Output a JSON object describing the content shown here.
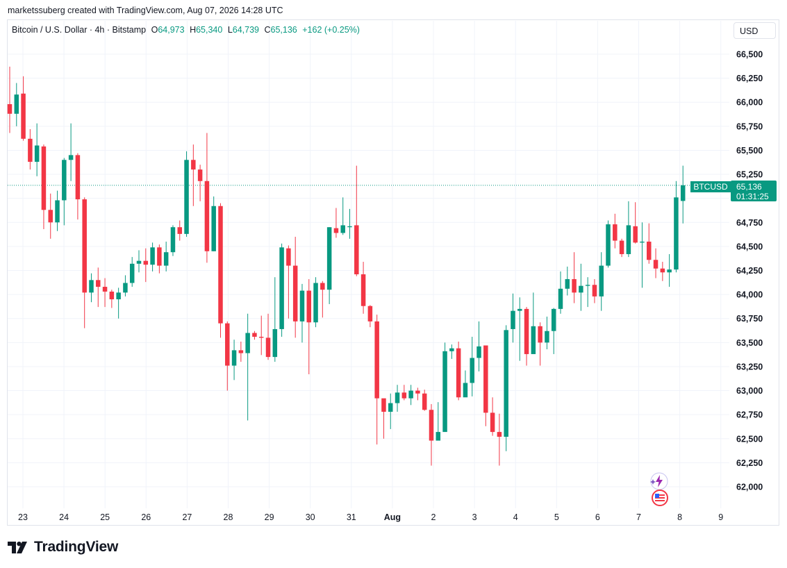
{
  "header": {
    "credit": "marketssuberg created with TradingView.com, Aug 07, 2026 14:28 UTC"
  },
  "legend": {
    "symbol": "Bitcoin / U.S. Dollar · 4h · Bitstamp",
    "open_label": "O",
    "open": "64,973",
    "high_label": "H",
    "high": "65,340",
    "low_label": "L",
    "low": "64,739",
    "close_label": "C",
    "close": "65,136",
    "change": "+162 (+0.25%)"
  },
  "toolbar": {
    "currency": "USD"
  },
  "price_tag": {
    "symbol": "BTCUSD",
    "price": "65,136",
    "countdown": "01:31:25"
  },
  "branding": {
    "logo_text": "TradingView"
  },
  "icons": [
    "flash-icon",
    "us-flag-icon",
    "tradingview-logo-icon"
  ],
  "colors": {
    "up": "#089981",
    "down": "#f23645",
    "grid": "#f0f3fa",
    "text": "#131722"
  },
  "chart_data": {
    "type": "candlestick",
    "title": "Bitcoin / U.S. Dollar · 4h · Bitstamp",
    "xlabel": "",
    "ylabel": "",
    "ylim": [
      61850,
      66650
    ],
    "y_ticks": [
      "66,500",
      "66,250",
      "66,000",
      "65,750",
      "65,500",
      "65,250",
      "64,750",
      "64,500",
      "64,250",
      "64,000",
      "63,750",
      "63,500",
      "63,250",
      "63,000",
      "62,750",
      "62,500",
      "62,250",
      "62,000"
    ],
    "x_ticks": [
      "23",
      "24",
      "25",
      "26",
      "27",
      "28",
      "29",
      "30",
      "31",
      "Aug",
      "2",
      "3",
      "4",
      "5",
      "6",
      "7",
      "8",
      "9"
    ],
    "last_price": 65136,
    "candles": [
      [
        65980,
        65880,
        66370,
        65680
      ],
      [
        65880,
        66080,
        66200,
        65750
      ],
      [
        66090,
        65620,
        66270,
        65600
      ],
      [
        65620,
        65380,
        65720,
        65300
      ],
      [
        65380,
        65550,
        65780,
        65230
      ],
      [
        65540,
        64880,
        65560,
        64680
      ],
      [
        64880,
        64750,
        65050,
        64580
      ],
      [
        64750,
        64980,
        65080,
        64660
      ],
      [
        64980,
        65400,
        65420,
        64720
      ],
      [
        65400,
        65450,
        65780,
        65180
      ],
      [
        65450,
        64990,
        65470,
        64780
      ],
      [
        64990,
        64020,
        65010,
        63650
      ],
      [
        64020,
        64150,
        64220,
        63920
      ],
      [
        64150,
        64080,
        64280,
        63870
      ],
      [
        64080,
        64030,
        64170,
        63870
      ],
      [
        64030,
        63950,
        64050,
        63860
      ],
      [
        63950,
        64020,
        64070,
        63750
      ],
      [
        64020,
        64120,
        64200,
        63980
      ],
      [
        64120,
        64320,
        64390,
        64080
      ],
      [
        64320,
        64350,
        64460,
        64230
      ],
      [
        64350,
        64310,
        64480,
        64130
      ],
      [
        64310,
        64490,
        64540,
        64240
      ],
      [
        64490,
        64300,
        64520,
        64220
      ],
      [
        64300,
        64440,
        64550,
        64240
      ],
      [
        64440,
        64700,
        64720,
        64400
      ],
      [
        64700,
        64630,
        64770,
        64560
      ],
      [
        64630,
        65400,
        65490,
        64600
      ],
      [
        65400,
        65300,
        65560,
        64920
      ],
      [
        65300,
        65180,
        65350,
        64970
      ],
      [
        65180,
        64450,
        65680,
        64330
      ],
      [
        64450,
        64920,
        65020,
        64450
      ],
      [
        64920,
        63700,
        64950,
        63550
      ],
      [
        63700,
        63260,
        63720,
        63000
      ],
      [
        63260,
        63420,
        63530,
        63110
      ],
      [
        63420,
        63390,
        63510,
        63300
      ],
      [
        63390,
        63600,
        63800,
        62690
      ],
      [
        63600,
        63560,
        63620,
        63530
      ],
      [
        63560,
        63550,
        63780,
        63370
      ],
      [
        63550,
        63350,
        63800,
        63320
      ],
      [
        63350,
        63640,
        64180,
        63300
      ],
      [
        63640,
        64490,
        64530,
        63560
      ],
      [
        64480,
        64300,
        64510,
        63750
      ],
      [
        64300,
        63720,
        64600,
        63550
      ],
      [
        63720,
        64040,
        64110,
        63500
      ],
      [
        64040,
        63710,
        64160,
        63170
      ],
      [
        63710,
        64120,
        64180,
        63660
      ],
      [
        64120,
        64050,
        64140,
        63760
      ],
      [
        64050,
        64700,
        64700,
        63900
      ],
      [
        64690,
        64640,
        64900,
        64590
      ],
      [
        64640,
        64720,
        65010,
        64620
      ],
      [
        64700,
        64710,
        64890,
        64580
      ],
      [
        64720,
        64210,
        65340,
        64190
      ],
      [
        64210,
        63880,
        64340,
        63800
      ],
      [
        63880,
        63720,
        63890,
        63660
      ],
      [
        63720,
        62920,
        63790,
        62440
      ],
      [
        62920,
        62780,
        62890,
        62500
      ],
      [
        62780,
        62870,
        62970,
        62600
      ],
      [
        62870,
        62980,
        63060,
        62780
      ],
      [
        62980,
        62920,
        63060,
        62900
      ],
      [
        62920,
        63000,
        63060,
        62850
      ],
      [
        63000,
        62970,
        63030,
        62900
      ],
      [
        62970,
        62800,
        63010,
        62790
      ],
      [
        62800,
        62480,
        62860,
        62220
      ],
      [
        62480,
        62570,
        62880,
        62500
      ],
      [
        62570,
        63410,
        63500,
        62660
      ],
      [
        63410,
        63440,
        63480,
        63330
      ],
      [
        63440,
        62930,
        63510,
        62900
      ],
      [
        62930,
        63080,
        63210,
        63000
      ],
      [
        63080,
        63340,
        63560,
        62940
      ],
      [
        63340,
        63460,
        63720,
        63200
      ],
      [
        63470,
        62770,
        63470,
        62630
      ],
      [
        62770,
        62570,
        62930,
        62530
      ],
      [
        62570,
        62520,
        62760,
        62220
      ],
      [
        62520,
        63630,
        63680,
        62370
      ],
      [
        63640,
        63830,
        64010,
        63500
      ],
      [
        63830,
        63850,
        63970,
        63310
      ],
      [
        63850,
        63380,
        63870,
        63260
      ],
      [
        63380,
        63670,
        64020,
        63450
      ],
      [
        63670,
        63500,
        63710,
        63260
      ],
      [
        63500,
        63620,
        63770,
        63430
      ],
      [
        63620,
        63850,
        63860,
        63380
      ],
      [
        63850,
        64060,
        64240,
        63800
      ],
      [
        64060,
        64160,
        64290,
        63990
      ],
      [
        64160,
        64020,
        64440,
        63910
      ],
      [
        64020,
        64090,
        64320,
        63830
      ],
      [
        64090,
        64100,
        64180,
        63870
      ],
      [
        64100,
        63980,
        64160,
        63910
      ],
      [
        63980,
        64300,
        64440,
        63830
      ],
      [
        64300,
        64730,
        64770,
        64280
      ],
      [
        64730,
        64560,
        64840,
        64480
      ],
      [
        64560,
        64420,
        64580,
        64390
      ],
      [
        64420,
        64720,
        64970,
        64390
      ],
      [
        64710,
        64540,
        64960,
        64530
      ],
      [
        64540,
        64550,
        64750,
        64070
      ],
      [
        64550,
        64360,
        64740,
        64320
      ],
      [
        64360,
        64270,
        64480,
        64170
      ],
      [
        64270,
        64230,
        64340,
        64140
      ],
      [
        64230,
        64260,
        64420,
        64080
      ],
      [
        64260,
        65010,
        65180,
        64230
      ],
      [
        64973,
        65136,
        65340,
        64739
      ]
    ]
  }
}
